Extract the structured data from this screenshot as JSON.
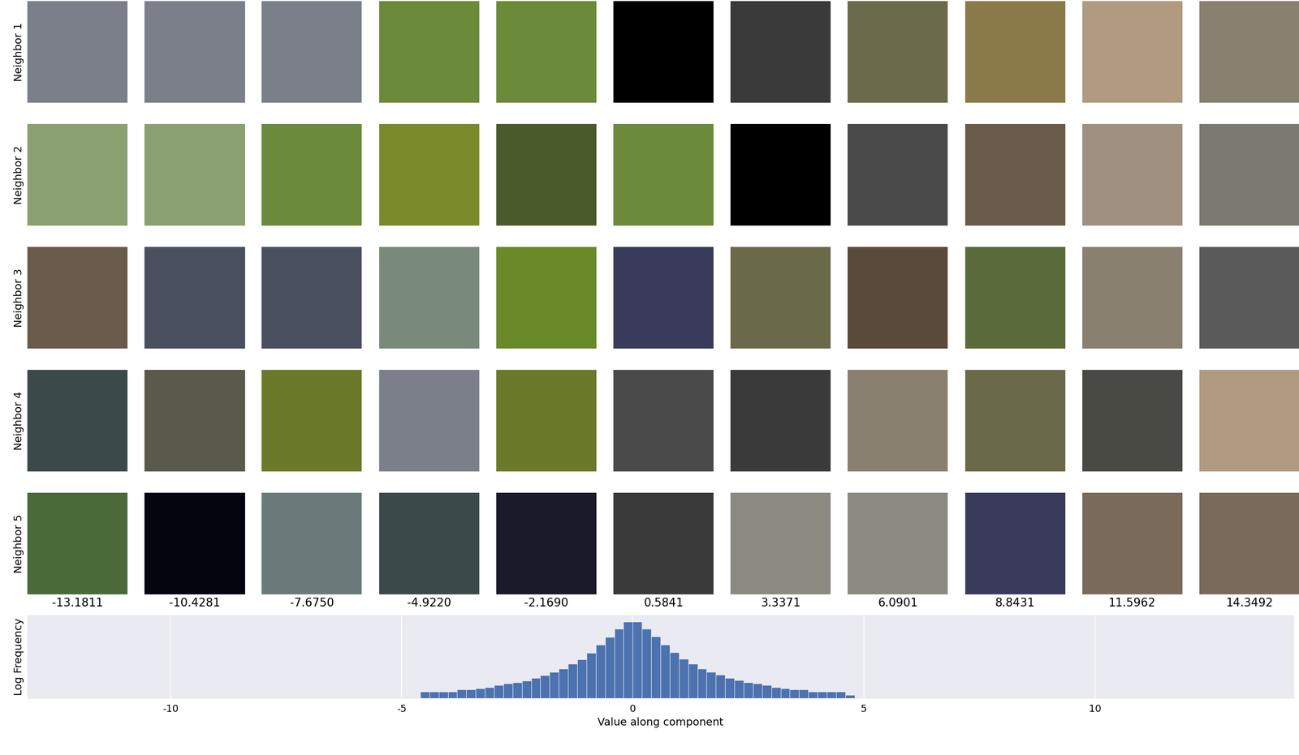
{
  "image_grid": {
    "row_labels": [
      "Neighbor 1",
      "Neighbor 2",
      "Neighbor 3",
      "Neighbor 4",
      "Neighbor 5"
    ],
    "column_labels": [
      "-13.1811",
      "-10.4281",
      "-7.6750",
      "-4.9220",
      "-2.1690",
      "0.5841",
      "3.3371",
      "6.0901",
      "8.8431",
      "11.5962",
      "14.3492"
    ]
  },
  "chart_data": {
    "type": "histogram",
    "x_label": "Value along component",
    "y_label": "Log Frequency",
    "bins": [
      -4.6,
      -4.4,
      -4.2,
      -4.0,
      -3.8,
      -3.6,
      -3.4,
      -3.2,
      -3.0,
      -2.8,
      -2.6,
      -2.4,
      -2.2,
      -2.0,
      -1.8,
      -1.6,
      -1.4,
      -1.2,
      -1.0,
      -0.8,
      -0.6,
      -0.4,
      -0.2,
      0.0,
      0.2,
      0.4,
      0.6,
      0.8,
      1.0,
      1.2,
      1.4,
      1.6,
      1.8,
      2.0,
      2.2,
      2.4,
      2.6,
      2.8,
      3.0,
      3.2,
      3.4,
      3.6,
      3.8,
      4.0,
      4.2,
      4.4,
      4.6,
      4.8
    ],
    "counts": [
      2,
      2,
      2,
      2,
      3,
      3,
      4,
      5,
      7,
      10,
      13,
      18,
      30,
      56,
      107,
      204,
      537,
      1410,
      5130,
      25700,
      129000,
      646000,
      2750000,
      2900000,
      680000,
      135000,
      27000,
      5400,
      1500,
      560,
      210,
      110,
      58,
      31,
      19,
      13,
      10,
      7,
      5,
      4,
      3,
      3,
      2,
      2,
      2,
      2,
      1
    ],
    "color": "#4c72b0",
    "log": "y",
    "xlim": [
      -13.1,
      14.3
    ],
    "xticks": [
      -10,
      -5,
      0,
      5,
      10
    ],
    "ylim": [
      0.5,
      10000000
    ],
    "grid": true,
    "tick_labels": "x"
  }
}
